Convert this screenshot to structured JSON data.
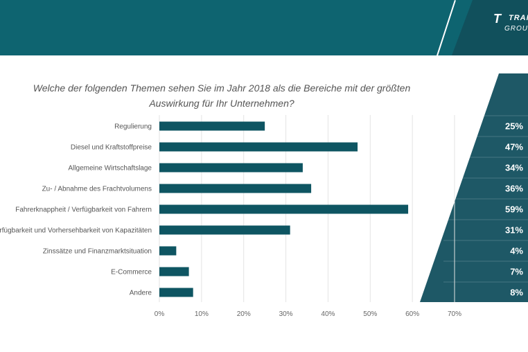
{
  "brand": {
    "logo_mark": "T",
    "logo_word": "TRANS",
    "logo_sub": "GROUP"
  },
  "colors": {
    "header": "#0e6470",
    "bar": "#0e5562",
    "pyramid": "#1e5866",
    "grid": "#e3e3e3"
  },
  "chart_data": {
    "type": "bar",
    "orientation": "horizontal",
    "title": "Welche der folgenden Themen sehen Sie im Jahr 2018 als die Bereiche mit der größten Auswirkung für Ihr Unternehmen?",
    "categories": [
      "Regulierung",
      "Diesel und Kraftstoffpreise",
      "Allgemeine Wirtschaftslage",
      "Zu- / Abnahme des Frachtvolumens",
      "Fahrerknappheit / Verfügbarkeit von Fahrern",
      "Verfügbarkeit und Vorhersehbarkeit von Kapazitäten",
      "Zinssätze und Finanzmarktsituation",
      "E-Commerce",
      "Andere"
    ],
    "values": [
      25,
      47,
      34,
      36,
      59,
      31,
      4,
      7,
      8
    ],
    "value_labels": [
      "25%",
      "47%",
      "34%",
      "36%",
      "59%",
      "31%",
      "4%",
      "7%",
      "8%"
    ],
    "xlim": [
      0,
      70
    ],
    "xticks": [
      "0%",
      "10%",
      "20%",
      "30%",
      "40%",
      "50%",
      "60%",
      "70%"
    ],
    "grid": true
  }
}
